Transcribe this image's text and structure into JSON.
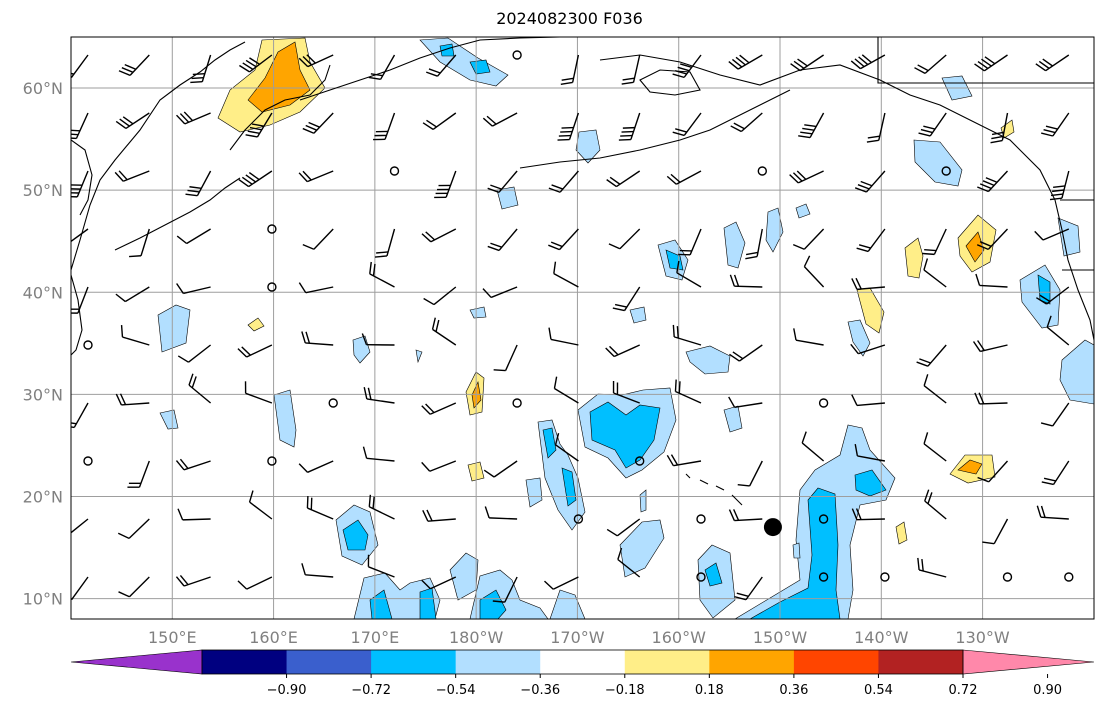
{
  "title": "2024082300 F036",
  "map": {
    "lat_ticks": [
      {
        "value": 10,
        "label": "10°N"
      },
      {
        "value": 20,
        "label": "20°N"
      },
      {
        "value": 30,
        "label": "30°N"
      },
      {
        "value": 40,
        "label": "40°N"
      },
      {
        "value": 50,
        "label": "50°N"
      },
      {
        "value": 60,
        "label": "60°N"
      }
    ],
    "lon_ticks": [
      {
        "value": 150,
        "label": "150°E"
      },
      {
        "value": 160,
        "label": "160°E"
      },
      {
        "value": 170,
        "label": "170°E"
      },
      {
        "value": 180,
        "label": "180°W"
      },
      {
        "value": 190,
        "label": "170°W"
      },
      {
        "value": 200,
        "label": "160°W"
      },
      {
        "value": 210,
        "label": "150°W"
      },
      {
        "value": 220,
        "label": "140°W"
      },
      {
        "value": 230,
        "label": "130°W"
      }
    ],
    "extent": {
      "lon_min": 140,
      "lon_max": 241,
      "lat_min": 8,
      "lat_max": 65
    },
    "grid_color": "#9e9e9e",
    "marker": {
      "lon": 209.3,
      "lat": 17.0
    }
  },
  "colorbar": {
    "colors": [
      "#9932cc",
      "#000080",
      "#3a5fcd",
      "#00bfff",
      "#b2dfff",
      "#ffffff",
      "#ffee88",
      "#ffa500",
      "#ff4500",
      "#b22222",
      "#ff88aa"
    ],
    "tick_labels": [
      "−0.90",
      "−0.72",
      "−0.54",
      "−0.36",
      "−0.18",
      "0.18",
      "0.36",
      "0.54",
      "0.72",
      "0.90"
    ]
  },
  "shading": {
    "light_blue": "#b2dfff",
    "blue": "#00bfff",
    "light_yellow": "#ffee88",
    "orange": "#ffa500"
  }
}
